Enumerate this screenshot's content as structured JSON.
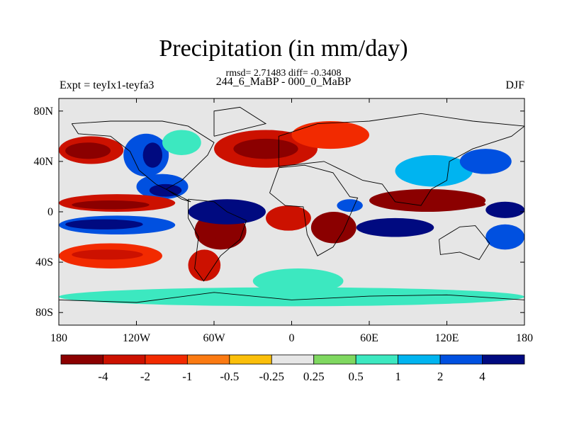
{
  "header": {
    "title": "Precipitation (in mm/day)",
    "stats": "rmsd= 2.71483 diff= -0.3408",
    "subtitle": "244_6_MaBP - 000_0_MaBP",
    "experiment": "Expt = teyIx1-teyfa3",
    "season": "DJF"
  },
  "chart_data": {
    "type": "heatmap",
    "title": "Precipitation (in mm/day)",
    "subtitle": "244_6_MaBP - 000_0_MaBP",
    "variable": "precipitation difference",
    "units": "mm/day",
    "rmsd": 2.71483,
    "diff": -0.3408,
    "season": "DJF",
    "experiment": "teyIx1-teyfa3",
    "xaxis": {
      "range": [
        -180,
        180
      ],
      "tick_values": [
        -180,
        -120,
        -60,
        0,
        60,
        120,
        180
      ],
      "tick_labels": [
        "180",
        "120W",
        "60W",
        "0",
        "60E",
        "120E",
        "180"
      ]
    },
    "yaxis": {
      "range": [
        -90,
        90
      ],
      "tick_values": [
        80,
        40,
        0,
        -40,
        -80
      ],
      "tick_labels": [
        "80N",
        "40N",
        "0",
        "40S",
        "80S"
      ]
    },
    "colorbar": {
      "labels": [
        "-4",
        "-2",
        "-1",
        "-0.5",
        "-0.25",
        "0.25",
        "0.5",
        "1",
        "2",
        "4"
      ],
      "colors": [
        "#8b0000",
        "#cc1100",
        "#f22a00",
        "#fb7a12",
        "#fbbf0a",
        "#e6e6e6",
        "#7fd860",
        "#3ce8c0",
        "#00b4f0",
        "#0050e0",
        "#000a80"
      ]
    },
    "regions": [
      {
        "lon": [
          -180,
          -130
        ],
        "lat": [
          38,
          60
        ],
        "level": 1
      },
      {
        "lon": [
          -175,
          -140
        ],
        "lat": [
          42,
          55
        ],
        "level": 0
      },
      {
        "lon": [
          -130,
          -95
        ],
        "lat": [
          28,
          62
        ],
        "level": 9
      },
      {
        "lon": [
          -115,
          -100
        ],
        "lat": [
          35,
          55
        ],
        "level": 10
      },
      {
        "lon": [
          -100,
          -70
        ],
        "lat": [
          45,
          65
        ],
        "level": 7
      },
      {
        "lon": [
          -120,
          -80
        ],
        "lat": [
          10,
          30
        ],
        "level": 9
      },
      {
        "lon": [
          -110,
          -85
        ],
        "lat": [
          12,
          22
        ],
        "level": 10
      },
      {
        "lon": [
          -180,
          -90
        ],
        "lat": [
          0,
          14
        ],
        "level": 1
      },
      {
        "lon": [
          -170,
          -110
        ],
        "lat": [
          2,
          9
        ],
        "level": 0
      },
      {
        "lon": [
          -180,
          -90
        ],
        "lat": [
          -18,
          -3
        ],
        "level": 9
      },
      {
        "lon": [
          -175,
          -115
        ],
        "lat": [
          -14,
          -6
        ],
        "level": 10
      },
      {
        "lon": [
          -180,
          -100
        ],
        "lat": [
          -45,
          -25
        ],
        "level": 2
      },
      {
        "lon": [
          -170,
          -115
        ],
        "lat": [
          -38,
          -30
        ],
        "level": 1
      },
      {
        "lon": [
          -75,
          -35
        ],
        "lat": [
          -30,
          0
        ],
        "level": 0
      },
      {
        "lon": [
          -65,
          -40
        ],
        "lat": [
          -22,
          -5
        ],
        "level": 0
      },
      {
        "lon": [
          -80,
          -55
        ],
        "lat": [
          -55,
          -30
        ],
        "level": 1
      },
      {
        "lon": [
          -80,
          -20
        ],
        "lat": [
          -10,
          10
        ],
        "level": 10
      },
      {
        "lon": [
          -20,
          15
        ],
        "lat": [
          -15,
          5
        ],
        "level": 1
      },
      {
        "lon": [
          15,
          50
        ],
        "lat": [
          -25,
          0
        ],
        "level": 0
      },
      {
        "lon": [
          35,
          55
        ],
        "lat": [
          0,
          10
        ],
        "level": 9
      },
      {
        "lon": [
          50,
          110
        ],
        "lat": [
          -20,
          -5
        ],
        "level": 10
      },
      {
        "lon": [
          60,
          100
        ],
        "lat": [
          -16,
          -8
        ],
        "level": 10
      },
      {
        "lon": [
          60,
          150
        ],
        "lat": [
          0,
          18
        ],
        "level": 0
      },
      {
        "lon": [
          90,
          150
        ],
        "lat": [
          2,
          10
        ],
        "level": 0
      },
      {
        "lon": [
          150,
          180
        ],
        "lat": [
          -5,
          8
        ],
        "level": 10
      },
      {
        "lon": [
          150,
          180
        ],
        "lat": [
          -30,
          -10
        ],
        "level": 9
      },
      {
        "lon": [
          -60,
          20
        ],
        "lat": [
          35,
          65
        ],
        "level": 1
      },
      {
        "lon": [
          -45,
          5
        ],
        "lat": [
          42,
          58
        ],
        "level": 0
      },
      {
        "lon": [
          0,
          60
        ],
        "lat": [
          50,
          72
        ],
        "level": 2
      },
      {
        "lon": [
          80,
          140
        ],
        "lat": [
          20,
          45
        ],
        "level": 8
      },
      {
        "lon": [
          130,
          170
        ],
        "lat": [
          30,
          50
        ],
        "level": 9
      },
      {
        "lon": [
          -30,
          40
        ],
        "lat": [
          -65,
          -45
        ],
        "level": 7
      },
      {
        "lon": [
          -180,
          180
        ],
        "lat": [
          -75,
          -60
        ],
        "level": 7
      },
      {
        "lon": [
          -180,
          180
        ],
        "lat": [
          75,
          90
        ],
        "level": 5
      },
      {
        "lon": [
          -180,
          180
        ],
        "lat": [
          -90,
          -78
        ],
        "level": 5
      },
      {
        "lon": [
          -10,
          60
        ],
        "lat": [
          15,
          35
        ],
        "level": 5
      }
    ]
  }
}
